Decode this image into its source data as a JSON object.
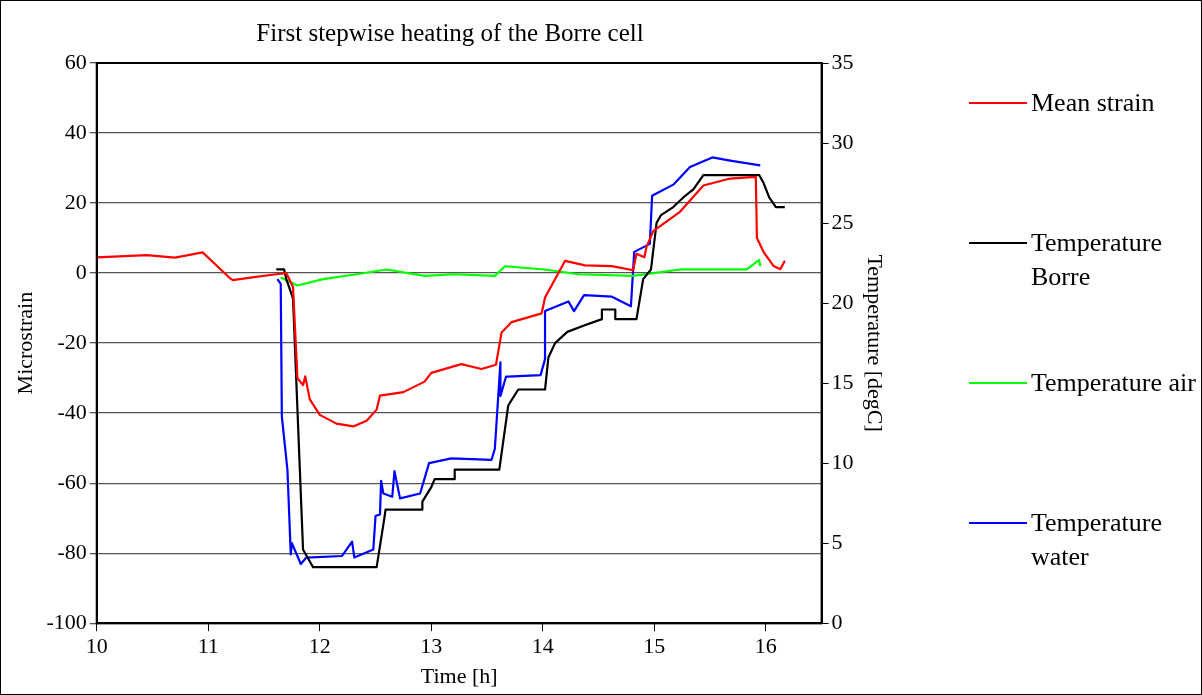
{
  "chart_data": {
    "type": "line",
    "title": "First stepwise heating of the Borre cell",
    "xlabel": "Time [h]",
    "ylabel": "Microstrain",
    "y2label": "Temperature [degC]",
    "xlim": [
      10,
      16.5
    ],
    "xticks": [
      10,
      11,
      12,
      13,
      14,
      15,
      16
    ],
    "ylim": [
      -100,
      60
    ],
    "yticks": [
      -100,
      -80,
      -60,
      -40,
      -20,
      0,
      20,
      40,
      60
    ],
    "y2lim": [
      0,
      35
    ],
    "y2ticks": [
      0,
      5,
      10,
      15,
      20,
      25,
      30,
      35
    ],
    "grid": "y",
    "legend": "right",
    "marker": "none",
    "line_style": "solid",
    "series": [
      {
        "name": "Mean strain",
        "color": "#ff0000",
        "x": [
          10,
          10.45,
          10.7,
          10.95,
          11.2,
          11.22,
          11.59,
          11.7,
          11.76,
          11.8,
          11.85,
          11.87,
          11.91,
          12,
          12.15,
          12.3,
          12.42,
          12.51,
          12.54,
          12.75,
          12.94,
          13,
          13.27,
          13.45,
          13.58,
          13.63,
          13.72,
          13.99,
          14.02,
          14.2,
          14.38,
          14.62,
          14.81,
          14.84,
          14.91,
          14.93,
          14.99,
          15.23,
          15.44,
          15.68,
          15.91,
          15.92,
          15.98,
          16.07,
          16.13,
          16.17
        ],
        "values": [
          4.5,
          5.1,
          4.4,
          5.9,
          -1.6,
          -2,
          -0.4,
          0,
          -4,
          -30,
          -32,
          -29.5,
          -36,
          -40.5,
          -43,
          -43.8,
          -42.2,
          -39,
          -35,
          -34,
          -31,
          -28.5,
          -26,
          -27.4,
          -26.2,
          -17,
          -14,
          -11.5,
          -7,
          3.5,
          2.2,
          2,
          0.8,
          5.5,
          4.5,
          7.5,
          12,
          17.5,
          25,
          27,
          27.5,
          10,
          6,
          2,
          1.1,
          3.5
        ]
      },
      {
        "name": "Temperature Borre",
        "color": "#000000",
        "axis": "y2",
        "x": [
          11.61,
          11.68,
          11.7,
          11.76,
          11.85,
          11.94,
          12.51,
          12.58,
          12.59,
          12.92,
          12.92,
          13,
          13.03,
          13.21,
          13.21,
          13.61,
          13.69,
          13.78,
          14.02,
          14.05,
          14.11,
          14.22,
          14.37,
          14.53,
          14.53,
          14.65,
          14.65,
          14.84,
          14.9,
          14.97,
          15.02,
          15.06,
          15.17,
          15.26,
          15.35,
          15.44,
          15.94,
          15.98,
          16.03,
          16.09,
          16.17
        ],
        "values": [
          22.1,
          22.1,
          21.5,
          20.3,
          4.6,
          3.5,
          3.5,
          6.6,
          7.1,
          7.1,
          7.6,
          8.5,
          9,
          9,
          9.6,
          9.6,
          13.6,
          14.6,
          14.6,
          16.6,
          17.5,
          18.2,
          18.6,
          19,
          19.6,
          19.6,
          19,
          19,
          21.5,
          22.1,
          25,
          25.5,
          26,
          26.6,
          27.1,
          28,
          28,
          27.5,
          26.6,
          26,
          26
        ]
      },
      {
        "name": "Temperature air",
        "color": "#00ff00",
        "axis": "y2",
        "x": [
          11.65,
          11.8,
          12.03,
          12.33,
          12.6,
          12.94,
          13.2,
          13.57,
          13.66,
          14.02,
          14.32,
          14.81,
          15.23,
          15.83,
          15.94,
          15.95
        ],
        "values": [
          21.6,
          21.1,
          21.5,
          21.8,
          22.1,
          21.7,
          21.8,
          21.7,
          22.3,
          22.1,
          21.8,
          21.7,
          22.1,
          22.1,
          22.7,
          22.3
        ]
      },
      {
        "name": "Temperature water",
        "color": "#0000ff",
        "axis": "y2",
        "x": [
          11.62,
          11.65,
          11.66,
          11.71,
          11.74,
          11.75,
          11.83,
          11.88,
          12.2,
          12.29,
          12.31,
          12.48,
          12.5,
          12.54,
          12.55,
          12.57,
          12.65,
          12.67,
          12.72,
          12.9,
          12.98,
          13.18,
          13.54,
          13.57,
          13.62,
          13.62,
          13.67,
          13.98,
          14.02,
          14.02,
          14.23,
          14.28,
          14.37,
          14.62,
          14.79,
          14.82,
          14.96,
          14.98,
          15.17,
          15.32,
          15.52,
          15.68,
          15.95
        ],
        "values": [
          21.5,
          21.2,
          12.9,
          9.6,
          4.3,
          5,
          3.7,
          4.1,
          4.2,
          5.1,
          4.1,
          4.6,
          6.7,
          6.8,
          8.9,
          8.1,
          7.9,
          9.5,
          7.8,
          8.1,
          10,
          10.3,
          10.2,
          10.9,
          16.3,
          14.2,
          15.4,
          15.5,
          16.5,
          19.5,
          20.1,
          19.5,
          20.5,
          20.4,
          19.8,
          23.2,
          23.7,
          26.7,
          27.4,
          28.5,
          29.1,
          28.9,
          28.6
        ]
      }
    ]
  }
}
